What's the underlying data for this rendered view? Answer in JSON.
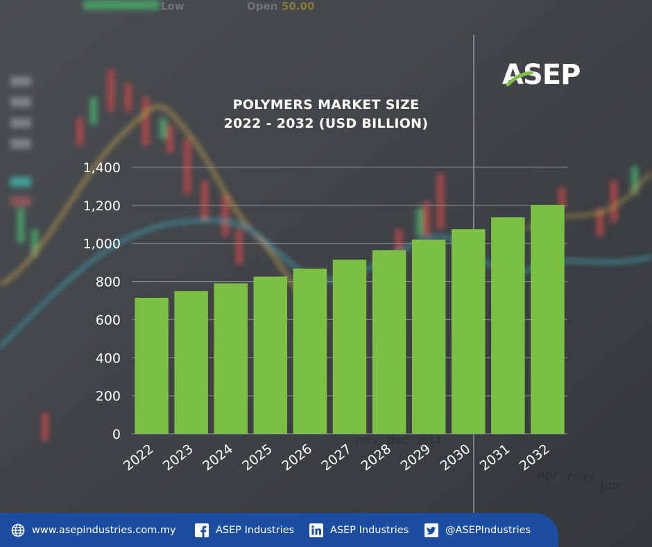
{
  "brand": {
    "logo_text": "ASEP"
  },
  "background": {
    "ticker_fragments": [
      "Low",
      "Open",
      "50.00",
      "nov",
      "dec",
      "2014",
      "apr",
      "may",
      "jun"
    ]
  },
  "chart_data": {
    "type": "bar",
    "title": "POLYMERS MARKET SIZE",
    "subtitle": "2022 - 2032 (USD BILLION)",
    "categories": [
      "2022",
      "2023",
      "2024",
      "2025",
      "2026",
      "2027",
      "2028",
      "2029",
      "2030",
      "2031",
      "2032"
    ],
    "values": [
      715,
      750,
      790,
      826,
      868,
      915,
      965,
      1020,
      1075,
      1137,
      1203
    ],
    "ylim": [
      0,
      1400
    ],
    "yticks": [
      0,
      200,
      400,
      600,
      800,
      1000,
      1200,
      1400
    ],
    "ytick_labels": [
      "0",
      "200",
      "400",
      "600",
      "800",
      "1,000",
      "1,200",
      "1,400"
    ],
    "xlabel": "",
    "ylabel": "",
    "grid": true,
    "bar_color": "#7bbf43",
    "grid_color": "#8e9196"
  },
  "footer": {
    "website": "www.asepindustries.com.my",
    "facebook": "ASEP Industries",
    "linkedin": "ASEP Industries",
    "twitter": "@ASEPIndustries",
    "color": "#1b4ea1"
  }
}
